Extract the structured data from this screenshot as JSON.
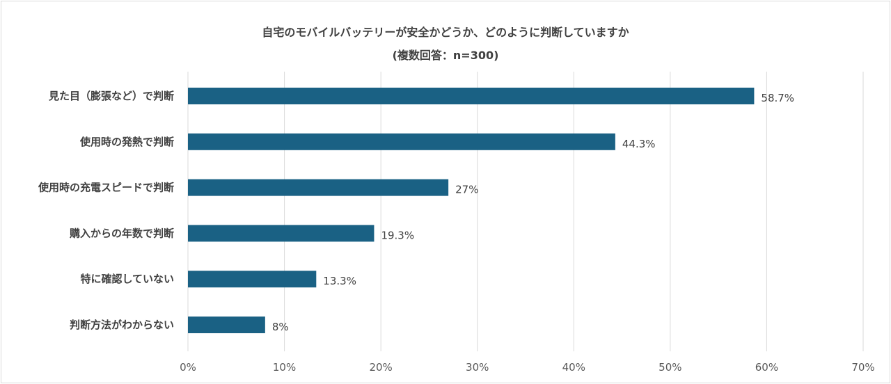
{
  "chart_data": {
    "type": "bar",
    "orientation": "horizontal",
    "title": "自宅のモバイルバッテリーが安全かどうか、どのように判断していますか",
    "subtitle": "(複数回答：n=300)",
    "categories": [
      "見た目（膨張など）で判断",
      "使用時の発熱で判断",
      "使用時の充電スピードで判断",
      "購入からの年数で判断",
      "特に確認していない",
      "判断方法がわからない"
    ],
    "values": [
      58.7,
      44.3,
      27,
      19.3,
      13.3,
      8
    ],
    "data_labels": [
      "58.7%",
      "44.3%",
      "27%",
      "19.3%",
      "13.3%",
      "8%"
    ],
    "xlim": [
      0,
      70
    ],
    "x_ticks": [
      "0%",
      "10%",
      "20%",
      "30%",
      "40%",
      "50%",
      "60%",
      "70%"
    ],
    "grid": true,
    "legend": "none",
    "bar_color": "#1a6184"
  }
}
